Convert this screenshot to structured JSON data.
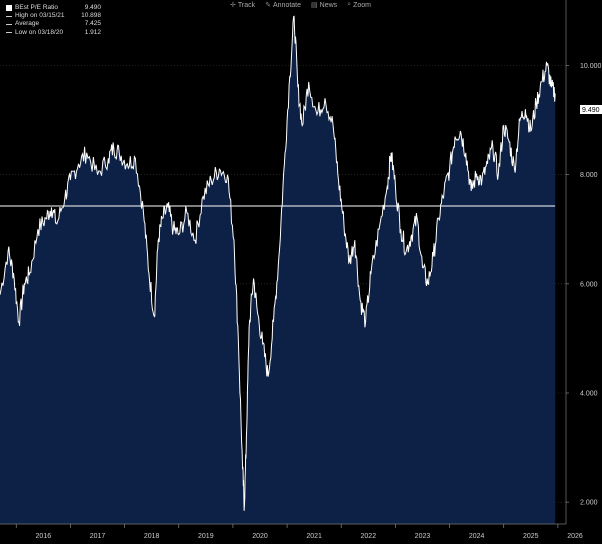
{
  "toolbar": {
    "track": "Track",
    "annotate": "Annotate",
    "news": "News",
    "zoom": "Zoom"
  },
  "legend": {
    "series": {
      "label": "BEst P/E Ratio",
      "value": "9.490"
    },
    "high": {
      "label": "High on 03/15/21",
      "value": "10.898"
    },
    "average": {
      "label": "Average",
      "value": "7.425"
    },
    "low": {
      "label": "Low on 03/18/20",
      "value": "1.912"
    }
  },
  "last_value_tag": "9.490",
  "colors": {
    "background": "#000000",
    "area": "#0c2145",
    "line": "#ffffff",
    "average": "#ffffff"
  },
  "chart_data": {
    "type": "area",
    "xlabel": "",
    "ylabel": "",
    "ylim": [
      1.6,
      11.2
    ],
    "xlim": [
      2015.7,
      2026.15
    ],
    "y_ticks": [
      "2.000",
      "4.000",
      "6.000",
      "8.000",
      "10.000"
    ],
    "x_ticks": [
      "2016",
      "2017",
      "2018",
      "2019",
      "2020",
      "2021",
      "2022",
      "2023",
      "2024",
      "2025",
      "2026"
    ],
    "average": 7.425,
    "grid": "horizontal",
    "legend_position": "top-left",
    "x": [
      2015.7,
      2015.85,
      2015.95,
      2016.05,
      2016.15,
      2016.25,
      2016.4,
      2016.55,
      2016.65,
      2016.75,
      2016.9,
      2017.0,
      2017.15,
      2017.3,
      2017.5,
      2017.7,
      2017.8,
      2017.9,
      2018.05,
      2018.2,
      2018.35,
      2018.45,
      2018.55,
      2018.62,
      2018.7,
      2018.8,
      2018.9,
      2019.0,
      2019.15,
      2019.3,
      2019.45,
      2019.6,
      2019.75,
      2019.9,
      2020.02,
      2020.1,
      2020.18,
      2020.21,
      2020.25,
      2020.3,
      2020.38,
      2020.45,
      2020.55,
      2020.65,
      2020.75,
      2020.85,
      2020.95,
      2021.05,
      2021.13,
      2021.2,
      2021.28,
      2021.4,
      2021.55,
      2021.7,
      2021.85,
      2021.95,
      2022.05,
      2022.15,
      2022.25,
      2022.35,
      2022.45,
      2022.55,
      2022.7,
      2022.85,
      2022.92,
      2023.0,
      2023.1,
      2023.2,
      2023.3,
      2023.4,
      2023.5,
      2023.6,
      2023.7,
      2023.8,
      2023.9,
      2024.0,
      2024.1,
      2024.2,
      2024.3,
      2024.4,
      2024.5,
      2024.6,
      2024.7,
      2024.8,
      2024.9,
      2025.0,
      2025.1,
      2025.2,
      2025.3,
      2025.4,
      2025.5,
      2025.6,
      2025.7,
      2025.8,
      2025.88,
      2025.95
    ],
    "y": [
      5.8,
      6.6,
      6.2,
      5.3,
      6.0,
      6.2,
      7.0,
      7.2,
      7.4,
      7.1,
      7.6,
      7.9,
      8.2,
      8.4,
      8.0,
      8.3,
      8.5,
      8.4,
      8.2,
      8.3,
      7.3,
      6.2,
      5.4,
      6.8,
      7.2,
      7.4,
      7.0,
      6.9,
      7.3,
      6.8,
      7.6,
      7.9,
      8.1,
      8.0,
      6.8,
      5.0,
      2.6,
      1.9,
      3.2,
      5.2,
      6.1,
      5.5,
      4.9,
      4.3,
      5.3,
      6.5,
      8.2,
      9.8,
      10.9,
      9.6,
      8.9,
      9.7,
      9.1,
      9.4,
      8.9,
      7.9,
      7.1,
      6.4,
      6.8,
      5.7,
      5.3,
      6.2,
      7.0,
      7.8,
      8.4,
      7.8,
      7.0,
      6.6,
      6.9,
      7.2,
      6.3,
      6.0,
      6.5,
      7.2,
      7.7,
      8.1,
      8.7,
      8.8,
      8.4,
      7.7,
      8.0,
      7.9,
      8.2,
      8.5,
      8.0,
      8.9,
      8.6,
      8.1,
      9.0,
      9.2,
      8.8,
      9.3,
      9.7,
      10.0,
      9.6,
      9.49
    ]
  }
}
